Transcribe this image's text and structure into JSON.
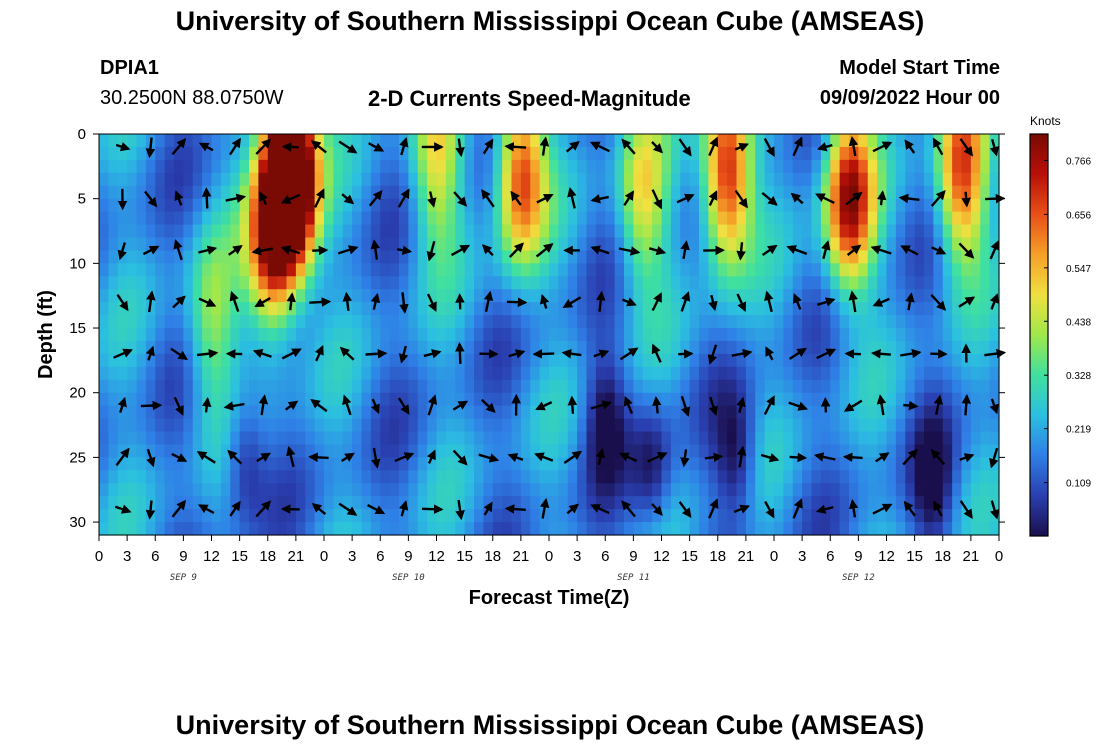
{
  "header": {
    "title": "University of Southern Mississippi Ocean Cube (AMSEAS)",
    "station_id": "DPIA1",
    "coordinates": "30.2500N  88.0750W",
    "subtitle": "2-D Currents Speed-Magnitude",
    "model_start_label": "Model Start Time",
    "model_start_value": "09/09/2022 Hour 00"
  },
  "footer": {
    "title": "University of Southern Mississippi Ocean Cube (AMSEAS)"
  },
  "chart_data": {
    "type": "heatmap",
    "title": "2-D Currents Speed-Magnitude",
    "xlabel": "Forecast Time(Z)",
    "ylabel": "Depth (ft)",
    "colorbar_label": "Knots",
    "x_tick_labels": [
      "0",
      "3",
      "6",
      "9",
      "12",
      "15",
      "18",
      "21",
      "0",
      "3",
      "6",
      "9",
      "12",
      "15",
      "18",
      "21",
      "0",
      "3",
      "6",
      "9",
      "12",
      "15",
      "18",
      "21",
      "0",
      "3",
      "6",
      "9",
      "12",
      "15",
      "18",
      "21",
      "0"
    ],
    "day_labels": [
      {
        "label": "SEP 9",
        "hour": 9
      },
      {
        "label": "SEP 10",
        "hour": 33
      },
      {
        "label": "SEP 11",
        "hour": 57
      },
      {
        "label": "SEP 12",
        "hour": 81
      }
    ],
    "x_range_hours": [
      0,
      96
    ],
    "y_ticks": [
      0,
      5,
      10,
      15,
      20,
      25,
      30
    ],
    "ylim": [
      31,
      0
    ],
    "colorbar_ticks": [
      0.109,
      0.219,
      0.328,
      0.438,
      0.547,
      0.656,
      0.766
    ],
    "colorbar_range": [
      0,
      0.82
    ],
    "colormap": [
      "#1a0f4d",
      "#2a3fb0",
      "#2f7fe6",
      "#2bbfe0",
      "#3fe0a0",
      "#9fe84a",
      "#f0e040",
      "#f5a028",
      "#e85018",
      "#b81008",
      "#7a0a04"
    ],
    "speed_peaks": [
      {
        "hour": 18.5,
        "depth": 8,
        "speed": 0.8
      },
      {
        "hour": 21,
        "depth": 4,
        "speed": 0.78
      },
      {
        "hour": 20,
        "depth": 2,
        "speed": 0.7
      },
      {
        "hour": 45,
        "depth": 3,
        "speed": 0.72
      },
      {
        "hour": 67,
        "depth": 3,
        "speed": 0.8
      },
      {
        "hour": 80,
        "depth": 5,
        "speed": 0.8
      },
      {
        "hour": 92,
        "depth": 3,
        "speed": 0.7
      },
      {
        "hour": 12,
        "depth": 15,
        "speed": 0.42
      },
      {
        "hour": 36,
        "depth": 2,
        "speed": 0.5
      },
      {
        "hour": 58,
        "depth": 5,
        "speed": 0.5
      }
    ],
    "speed_lows": [
      {
        "hour": 15.5,
        "depth": 25,
        "speed": 0.05
      },
      {
        "hour": 59,
        "depth": 26,
        "speed": 0.03
      },
      {
        "hour": 68,
        "depth": 25,
        "speed": 0.03
      },
      {
        "hour": 89,
        "depth": 27,
        "speed": 0.05
      },
      {
        "hour": 54,
        "depth": 22,
        "speed": 0.05
      }
    ],
    "arrow_hours": [
      2.5,
      5.5,
      8.5,
      11.5,
      14.5,
      17.5,
      20.5,
      23.5,
      26.5,
      29.5,
      32.5,
      35.5,
      38.5,
      41.5,
      44.5,
      47.5,
      50.5,
      53.5,
      56.5,
      59.5,
      62.5,
      65.5,
      68.5,
      71.5,
      74.5,
      77.5,
      80.5,
      83.5,
      86.5,
      89.5,
      92.5,
      95.5
    ],
    "arrow_depths": [
      1,
      5,
      9,
      13,
      17,
      21,
      25,
      29
    ]
  }
}
